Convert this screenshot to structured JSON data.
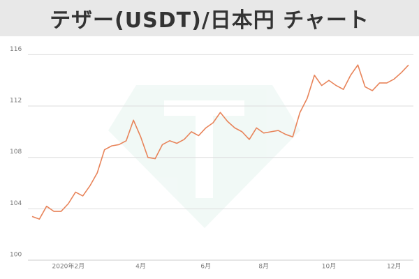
{
  "chart_data": {
    "type": "line",
    "title": "テザー(USDT)/日本円 チャート",
    "categories": [
      null,
      null,
      null,
      null,
      null,
      "2020年2月",
      null,
      null,
      null,
      null,
      null,
      null,
      null,
      null,
      null,
      "4月",
      null,
      null,
      null,
      null,
      null,
      null,
      null,
      null,
      "6月",
      null,
      null,
      null,
      null,
      null,
      null,
      null,
      "8月",
      null,
      null,
      null,
      null,
      null,
      null,
      null,
      null,
      "10月",
      null,
      null,
      null,
      null,
      null,
      null,
      null,
      null,
      "12月",
      null,
      null
    ],
    "series": [
      {
        "color": "#e8845a",
        "values": [
          103.4,
          103.2,
          104.2,
          103.8,
          103.8,
          104.4,
          105.3,
          105.0,
          105.8,
          106.8,
          108.6,
          108.9,
          109.0,
          109.3,
          110.9,
          109.6,
          108.0,
          107.9,
          109.0,
          109.3,
          109.1,
          109.4,
          110.0,
          109.7,
          110.3,
          110.7,
          111.5,
          110.8,
          110.3,
          110.0,
          109.4,
          110.3,
          109.9,
          110.0,
          110.1,
          109.8,
          109.6,
          111.5,
          112.6,
          114.4,
          113.6,
          114.0,
          113.6,
          113.3,
          114.4,
          115.2,
          113.5,
          113.2,
          113.8,
          113.8,
          114.1,
          114.6,
          115.2
        ]
      }
    ],
    "ylim": [
      100,
      117
    ],
    "yticks": [
      100,
      104,
      108,
      112,
      116
    ],
    "grid": true
  }
}
